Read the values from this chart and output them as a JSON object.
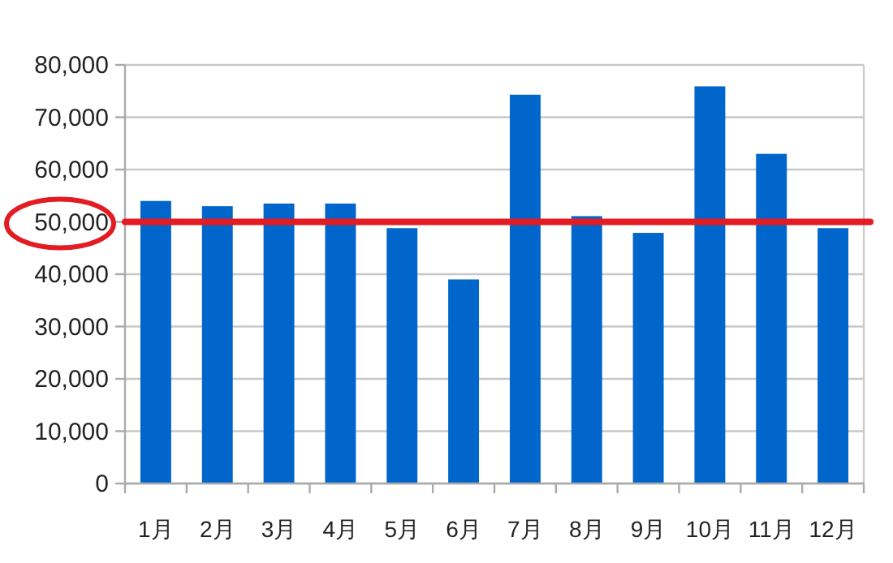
{
  "chart_data": {
    "type": "bar",
    "categories": [
      "1月",
      "2月",
      "3月",
      "4月",
      "5月",
      "6月",
      "7月",
      "8月",
      "9月",
      "10月",
      "11月",
      "12月"
    ],
    "values": [
      54000,
      53000,
      53500,
      53500,
      48800,
      39000,
      74300,
      51100,
      47900,
      75900,
      63000,
      48800
    ],
    "color": "#0066cc",
    "ylim": [
      0,
      80000
    ],
    "yticks": [
      {
        "value": 0,
        "label": "0"
      },
      {
        "value": 10000,
        "label": "10,000"
      },
      {
        "value": 20000,
        "label": "20,000"
      },
      {
        "value": 30000,
        "label": "30,000"
      },
      {
        "value": 40000,
        "label": "40,000"
      },
      {
        "value": 50000,
        "label": "50,000"
      },
      {
        "value": 60000,
        "label": "60,000"
      },
      {
        "value": 70000,
        "label": "70,000"
      },
      {
        "value": 80000,
        "label": "80,000"
      }
    ],
    "grid": "y",
    "ref_lines": [
      {
        "axis": "y",
        "value": 50000,
        "color": "#e31b23"
      }
    ]
  }
}
